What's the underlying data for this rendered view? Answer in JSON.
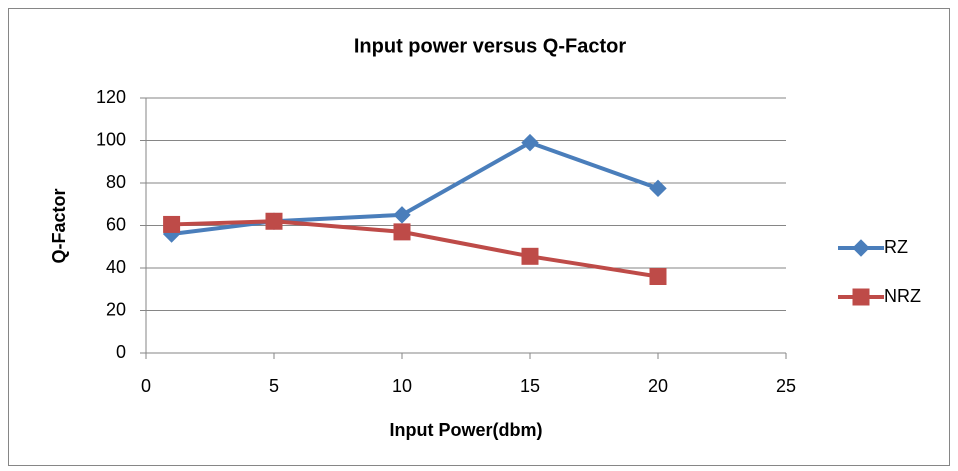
{
  "chart_data": {
    "type": "line",
    "title": "Input power versus Q-Factor",
    "x_label": "Input Power(dbm)",
    "y_label": "Q-Factor",
    "x": [
      1,
      5,
      10,
      15,
      20
    ],
    "series": [
      {
        "name": "RZ",
        "color": "#4a7ebb",
        "marker": "diamond",
        "values": [
          56,
          62,
          65,
          99,
          77.5
        ]
      },
      {
        "name": "NRZ",
        "color": "#be4b48",
        "marker": "square",
        "values": [
          60.5,
          62,
          57,
          45.5,
          36
        ]
      }
    ],
    "xlim": [
      0,
      25
    ],
    "xticks": [
      0,
      5,
      10,
      15,
      20,
      25
    ],
    "ylim": [
      0,
      120
    ],
    "yticks": [
      0,
      20,
      40,
      60,
      80,
      100,
      120
    ],
    "grid": true,
    "legend": "right"
  }
}
